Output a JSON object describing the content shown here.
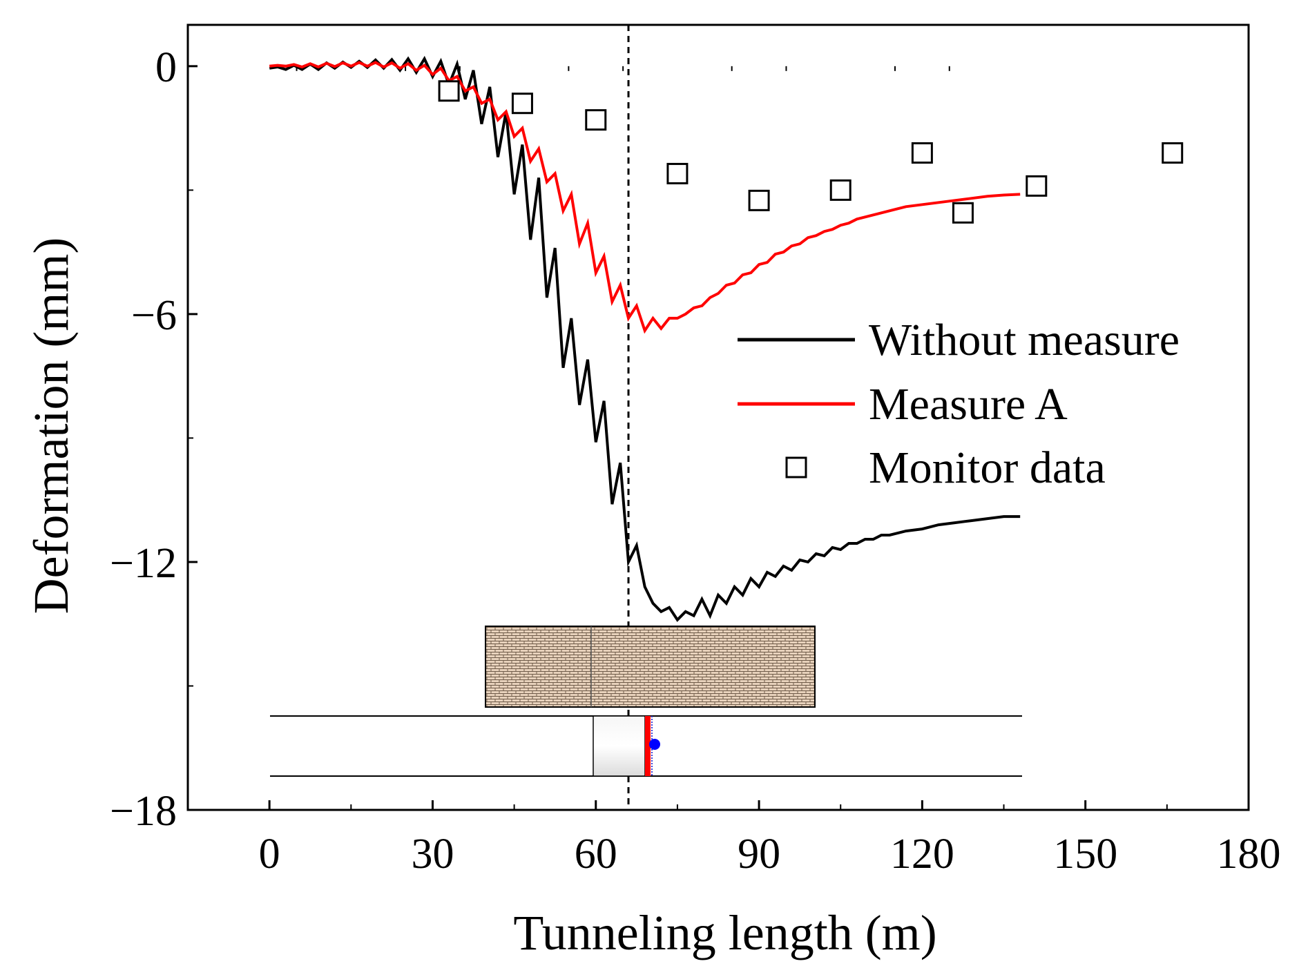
{
  "chart_data": {
    "type": "line",
    "xlabel": "Tunneling length (m)",
    "ylabel": "Deformation (mm)",
    "xlim": [
      -15,
      180
    ],
    "ylim": [
      -18,
      1
    ],
    "xticks": [
      0,
      30,
      60,
      90,
      120,
      150,
      180
    ],
    "xtick_labels": [
      "0",
      "30",
      "60",
      "90",
      "120",
      "150",
      "180"
    ],
    "yticks": [
      0,
      -6,
      -12,
      -18
    ],
    "ytick_labels": [
      "0",
      "−6",
      "−12",
      "−18"
    ],
    "grid": false,
    "legend": {
      "position": "right-middle"
    },
    "reference_line_x": 66,
    "series": [
      {
        "name": "Without measure",
        "color": "#000000",
        "style": "line",
        "x": [
          0,
          1.5,
          3,
          4.5,
          6,
          7.5,
          9,
          10.5,
          12,
          13.5,
          15,
          16.5,
          18,
          19.5,
          21,
          22.5,
          24,
          25.5,
          27,
          28.5,
          30,
          31.5,
          33,
          34.5,
          36,
          37.5,
          39,
          40.5,
          42,
          43.5,
          45,
          46.5,
          48,
          49.5,
          51,
          52.5,
          54,
          55.5,
          57,
          58.5,
          60,
          61.5,
          63,
          64.5,
          66,
          67.5,
          69,
          70.5,
          72,
          73.5,
          75,
          76.5,
          78,
          79.5,
          81,
          82.5,
          84,
          85.5,
          87,
          88.5,
          90,
          91.5,
          93,
          94.5,
          96,
          97.5,
          99,
          100.5,
          102,
          103.5,
          105,
          106.5,
          108,
          109.5,
          111,
          112.5,
          114,
          115.5,
          117,
          120,
          123,
          126,
          129,
          132,
          135,
          138
        ],
        "y": [
          -0.05,
          -0.02,
          -0.08,
          0.02,
          -0.08,
          0.05,
          -0.08,
          0.08,
          -0.05,
          0.1,
          -0.03,
          0.12,
          -0.03,
          0.15,
          -0.05,
          0.16,
          -0.1,
          0.18,
          -0.15,
          0.18,
          -0.25,
          0.12,
          -0.45,
          0.05,
          -0.8,
          -0.1,
          -1.4,
          -0.5,
          -2.2,
          -1.1,
          -3.1,
          -1.9,
          -4.2,
          -2.7,
          -5.6,
          -4.4,
          -7.3,
          -6.1,
          -8.2,
          -7.1,
          -9.1,
          -8.1,
          -10.6,
          -9.6,
          -12.0,
          -11.6,
          -12.6,
          -13.0,
          -13.2,
          -13.1,
          -13.4,
          -13.2,
          -13.3,
          -12.9,
          -13.3,
          -12.8,
          -13.0,
          -12.6,
          -12.8,
          -12.4,
          -12.6,
          -12.25,
          -12.35,
          -12.1,
          -12.2,
          -11.95,
          -12.0,
          -11.8,
          -11.85,
          -11.65,
          -11.7,
          -11.55,
          -11.55,
          -11.45,
          -11.45,
          -11.35,
          -11.35,
          -11.3,
          -11.25,
          -11.2,
          -11.1,
          -11.05,
          -11.0,
          -10.95,
          -10.9,
          -10.9
        ]
      },
      {
        "name": "Measure A",
        "color": "#ff0000",
        "style": "line",
        "x": [
          0,
          1.5,
          3,
          4.5,
          6,
          7.5,
          9,
          10.5,
          12,
          13.5,
          15,
          16.5,
          18,
          19.5,
          21,
          22.5,
          24,
          25.5,
          27,
          28.5,
          30,
          31.5,
          33,
          34.5,
          36,
          37.5,
          39,
          40.5,
          42,
          43.5,
          45,
          46.5,
          48,
          49.5,
          51,
          52.5,
          54,
          55.5,
          57,
          58.5,
          60,
          61.5,
          63,
          64.5,
          66,
          67.5,
          69,
          70.5,
          72,
          73.5,
          75,
          76.5,
          78,
          79.5,
          81,
          82.5,
          84,
          85.5,
          87,
          88.5,
          90,
          91.5,
          93,
          94.5,
          96,
          97.5,
          99,
          100.5,
          102,
          103.5,
          105,
          106.5,
          108,
          109.5,
          111,
          112.5,
          114,
          115.5,
          117,
          120,
          123,
          126,
          129,
          132,
          135,
          138
        ],
        "y": [
          0.0,
          0.02,
          0.0,
          0.04,
          -0.02,
          0.06,
          -0.02,
          0.07,
          -0.01,
          0.08,
          0.0,
          0.09,
          0.0,
          0.09,
          -0.02,
          0.08,
          -0.05,
          0.06,
          -0.1,
          0.02,
          -0.2,
          -0.05,
          -0.35,
          -0.25,
          -0.6,
          -0.5,
          -0.9,
          -0.8,
          -1.3,
          -1.1,
          -1.7,
          -1.5,
          -2.3,
          -2.0,
          -2.8,
          -2.6,
          -3.5,
          -3.1,
          -4.3,
          -3.8,
          -5.0,
          -4.6,
          -5.7,
          -5.3,
          -6.1,
          -5.8,
          -6.4,
          -6.1,
          -6.35,
          -6.1,
          -6.1,
          -6.0,
          -5.85,
          -5.8,
          -5.6,
          -5.5,
          -5.3,
          -5.25,
          -5.05,
          -5.0,
          -4.8,
          -4.75,
          -4.55,
          -4.5,
          -4.35,
          -4.3,
          -4.15,
          -4.1,
          -4.0,
          -3.95,
          -3.85,
          -3.8,
          -3.7,
          -3.65,
          -3.6,
          -3.55,
          -3.5,
          -3.45,
          -3.4,
          -3.35,
          -3.3,
          -3.25,
          -3.2,
          -3.15,
          -3.12,
          -3.1
        ]
      },
      {
        "name": "Monitor data",
        "color": "#000000",
        "style": "marker-open-square",
        "x": [
          33,
          46.5,
          60,
          75,
          90,
          105,
          120,
          127.5,
          141,
          166
        ],
        "y": [
          -0.6,
          -0.9,
          -1.3,
          -2.6,
          -3.25,
          -3.0,
          -2.1,
          -3.55,
          -2.9,
          -2.1
        ]
      }
    ]
  }
}
